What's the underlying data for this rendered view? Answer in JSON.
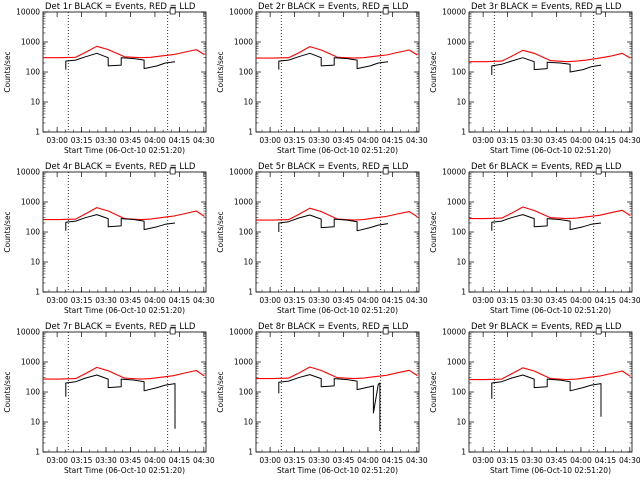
{
  "figure": {
    "x_tick_labels": [
      "03:00",
      "03:15",
      "03:30",
      "03:45",
      "04:00",
      "04:15",
      "04:30"
    ],
    "y_tick_labels": [
      "1",
      "10",
      "100",
      "1000",
      "10000"
    ],
    "xlabel": "Start Time (06-Oct-10 02:51:20)",
    "ylabel": "Counts/sec"
  },
  "chart_data": [
    {
      "type": "line",
      "title": "Det 1r BLACK = Events, RED = LLD",
      "xlabel": "Start Time (06-Oct-10 02:51:20)",
      "ylabel": "Counts/sec",
      "y_scale": "log",
      "ylim": [
        1,
        10000
      ],
      "x_unit": "minutes since 02:51:20",
      "x_range": [
        0,
        100
      ],
      "series": [
        {
          "color": "#ff0000",
          "x": [
            0,
            10,
            20,
            26,
            33,
            40,
            50,
            60,
            66,
            72,
            80,
            87,
            94,
            99
          ],
          "y": [
            300,
            300,
            310,
            450,
            720,
            560,
            320,
            300,
            310,
            340,
            380,
            460,
            560,
            380
          ]
        },
        {
          "color": "#000000",
          "x": [
            14,
            14,
            20,
            26,
            33,
            40,
            40,
            48,
            48,
            56,
            62,
            62,
            70,
            75,
            81
          ],
          "y": [
            120,
            230,
            250,
            320,
            420,
            300,
            160,
            170,
            300,
            280,
            250,
            130,
            160,
            200,
            220
          ]
        }
      ]
    },
    {
      "type": "line",
      "title": "Det 2r BLACK = Events, RED = LLD",
      "xlabel": "Start Time (06-Oct-10 02:51:20)",
      "ylabel": "Counts/sec",
      "y_scale": "log",
      "ylim": [
        1,
        10000
      ],
      "x_unit": "minutes since 02:51:20",
      "x_range": [
        0,
        100
      ],
      "series": [
        {
          "color": "#ff0000",
          "x": [
            0,
            10,
            20,
            26,
            33,
            40,
            50,
            60,
            66,
            72,
            80,
            87,
            94,
            99
          ],
          "y": [
            290,
            290,
            300,
            430,
            700,
            540,
            310,
            290,
            300,
            330,
            370,
            450,
            540,
            370
          ]
        },
        {
          "color": "#000000",
          "x": [
            14,
            14,
            20,
            26,
            33,
            40,
            40,
            48,
            48,
            56,
            62,
            62,
            70,
            75,
            81
          ],
          "y": [
            120,
            230,
            250,
            320,
            420,
            300,
            160,
            170,
            300,
            280,
            250,
            130,
            160,
            200,
            220
          ]
        }
      ]
    },
    {
      "type": "line",
      "title": "Det 3r BLACK = Events, RED = LLD",
      "xlabel": "Start Time (06-Oct-10 02:51:20)",
      "ylabel": "Counts/sec",
      "y_scale": "log",
      "ylim": [
        1,
        10000
      ],
      "x_unit": "minutes since 02:51:20",
      "x_range": [
        0,
        100
      ],
      "series": [
        {
          "color": "#ff0000",
          "x": [
            0,
            10,
            20,
            26,
            33,
            40,
            50,
            60,
            66,
            72,
            80,
            87,
            94,
            99
          ],
          "y": [
            220,
            220,
            230,
            330,
            530,
            420,
            240,
            220,
            230,
            250,
            290,
            340,
            420,
            290
          ]
        },
        {
          "color": "#000000",
          "x": [
            14,
            14,
            20,
            26,
            33,
            40,
            40,
            48,
            48,
            56,
            62,
            62,
            70,
            75,
            81
          ],
          "y": [
            80,
            160,
            180,
            230,
            300,
            220,
            120,
            130,
            210,
            200,
            180,
            100,
            120,
            150,
            170
          ]
        }
      ]
    },
    {
      "type": "line",
      "title": "Det 4r BLACK = Events, RED = LLD",
      "xlabel": "Start Time (06-Oct-10 02:51:20)",
      "ylabel": "Counts/sec",
      "y_scale": "log",
      "ylim": [
        1,
        10000
      ],
      "x_unit": "minutes since 02:51:20",
      "x_range": [
        0,
        100
      ],
      "series": [
        {
          "color": "#ff0000",
          "x": [
            0,
            10,
            20,
            26,
            33,
            40,
            50,
            60,
            66,
            72,
            80,
            87,
            94,
            99
          ],
          "y": [
            260,
            260,
            270,
            400,
            650,
            500,
            280,
            260,
            270,
            300,
            340,
            410,
            500,
            330
          ]
        },
        {
          "color": "#000000",
          "x": [
            14,
            14,
            20,
            26,
            33,
            40,
            40,
            48,
            48,
            56,
            62,
            62,
            70,
            75,
            81
          ],
          "y": [
            110,
            210,
            230,
            300,
            380,
            280,
            150,
            160,
            280,
            260,
            230,
            120,
            150,
            180,
            200
          ]
        }
      ]
    },
    {
      "type": "line",
      "title": "Det 5r BLACK = Events, RED = LLD",
      "xlabel": "Start Time (06-Oct-10 02:51:20)",
      "ylabel": "Counts/sec",
      "y_scale": "log",
      "ylim": [
        1,
        10000
      ],
      "x_unit": "minutes since 02:51:20",
      "x_range": [
        0,
        100
      ],
      "series": [
        {
          "color": "#ff0000",
          "x": [
            0,
            10,
            20,
            26,
            33,
            40,
            50,
            60,
            66,
            72,
            80,
            87,
            94,
            99
          ],
          "y": [
            250,
            250,
            260,
            380,
            620,
            480,
            270,
            250,
            260,
            290,
            330,
            400,
            480,
            320
          ]
        },
        {
          "color": "#000000",
          "x": [
            14,
            14,
            20,
            26,
            33,
            40,
            40,
            48,
            48,
            56,
            62,
            62,
            70,
            75,
            81
          ],
          "y": [
            100,
            200,
            220,
            290,
            370,
            270,
            140,
            150,
            270,
            250,
            220,
            110,
            140,
            170,
            190
          ]
        }
      ]
    },
    {
      "type": "line",
      "title": "Det 6r BLACK = Events, RED = LLD",
      "xlabel": "Start Time (06-Oct-10 02:51:20)",
      "ylabel": "Counts/sec",
      "y_scale": "log",
      "ylim": [
        1,
        10000
      ],
      "x_unit": "minutes since 02:51:20",
      "x_range": [
        0,
        100
      ],
      "series": [
        {
          "color": "#ff0000",
          "x": [
            0,
            10,
            20,
            26,
            33,
            40,
            50,
            60,
            66,
            72,
            80,
            87,
            94,
            99
          ],
          "y": [
            280,
            280,
            290,
            420,
            680,
            520,
            300,
            280,
            290,
            320,
            360,
            440,
            530,
            350
          ]
        },
        {
          "color": "#000000",
          "x": [
            14,
            14,
            20,
            26,
            33,
            40,
            40,
            48,
            48,
            56,
            62,
            62,
            70,
            75,
            81
          ],
          "y": [
            110,
            210,
            230,
            300,
            380,
            280,
            150,
            160,
            280,
            260,
            230,
            120,
            150,
            180,
            200
          ]
        }
      ]
    },
    {
      "type": "line",
      "title": "Det 7r BLACK = Events, RED = LLD",
      "xlabel": "Start Time (06-Oct-10 02:51:20)",
      "ylabel": "Counts/sec",
      "y_scale": "log",
      "ylim": [
        1,
        10000
      ],
      "x_unit": "minutes since 02:51:20",
      "x_range": [
        0,
        100
      ],
      "series": [
        {
          "color": "#ff0000",
          "x": [
            0,
            10,
            20,
            26,
            33,
            40,
            50,
            60,
            66,
            72,
            80,
            87,
            94,
            99
          ],
          "y": [
            270,
            270,
            280,
            410,
            660,
            510,
            290,
            270,
            280,
            310,
            350,
            430,
            520,
            340
          ]
        },
        {
          "color": "#000000",
          "x": [
            14,
            14,
            20,
            26,
            33,
            40,
            40,
            48,
            48,
            56,
            62,
            62,
            70,
            75,
            81,
            81
          ],
          "y": [
            70,
            200,
            220,
            290,
            370,
            270,
            140,
            150,
            270,
            250,
            220,
            110,
            140,
            170,
            190,
            6
          ]
        }
      ]
    },
    {
      "type": "line",
      "title": "Det 8r BLACK = Events, RED = LLD",
      "xlabel": "Start Time (06-Oct-10 02:51:20)",
      "ylabel": "Counts/sec",
      "y_scale": "log",
      "ylim": [
        1,
        10000
      ],
      "x_unit": "minutes since 02:51:20",
      "x_range": [
        0,
        100
      ],
      "series": [
        {
          "color": "#ff0000",
          "x": [
            0,
            10,
            20,
            26,
            33,
            40,
            50,
            60,
            66,
            72,
            80,
            87,
            94,
            99
          ],
          "y": [
            280,
            280,
            290,
            420,
            680,
            520,
            300,
            280,
            290,
            320,
            360,
            440,
            530,
            350
          ]
        },
        {
          "color": "#000000",
          "x": [
            14,
            14,
            20,
            26,
            33,
            40,
            40,
            48,
            48,
            56,
            62,
            62,
            70,
            72,
            72,
            75,
            76,
            76
          ],
          "y": [
            90,
            210,
            230,
            300,
            380,
            280,
            150,
            160,
            280,
            260,
            230,
            120,
            150,
            160,
            20,
            180,
            200,
            5
          ]
        }
      ]
    },
    {
      "type": "line",
      "title": "Det 9r BLACK = Events, RED = LLD",
      "xlabel": "Start Time (06-Oct-10 02:51:20)",
      "ylabel": "Counts/sec",
      "y_scale": "log",
      "ylim": [
        1,
        10000
      ],
      "x_unit": "minutes since 02:51:20",
      "x_range": [
        0,
        100
      ],
      "series": [
        {
          "color": "#ff0000",
          "x": [
            0,
            10,
            20,
            26,
            33,
            40,
            50,
            60,
            66,
            72,
            80,
            87,
            94,
            99
          ],
          "y": [
            260,
            260,
            270,
            400,
            640,
            500,
            280,
            260,
            270,
            300,
            340,
            410,
            500,
            330
          ]
        },
        {
          "color": "#000000",
          "x": [
            14,
            14,
            20,
            26,
            33,
            40,
            40,
            48,
            48,
            56,
            62,
            62,
            70,
            75,
            81,
            81
          ],
          "y": [
            60,
            200,
            220,
            290,
            370,
            270,
            140,
            150,
            270,
            250,
            220,
            110,
            140,
            170,
            190,
            15
          ]
        }
      ]
    }
  ]
}
